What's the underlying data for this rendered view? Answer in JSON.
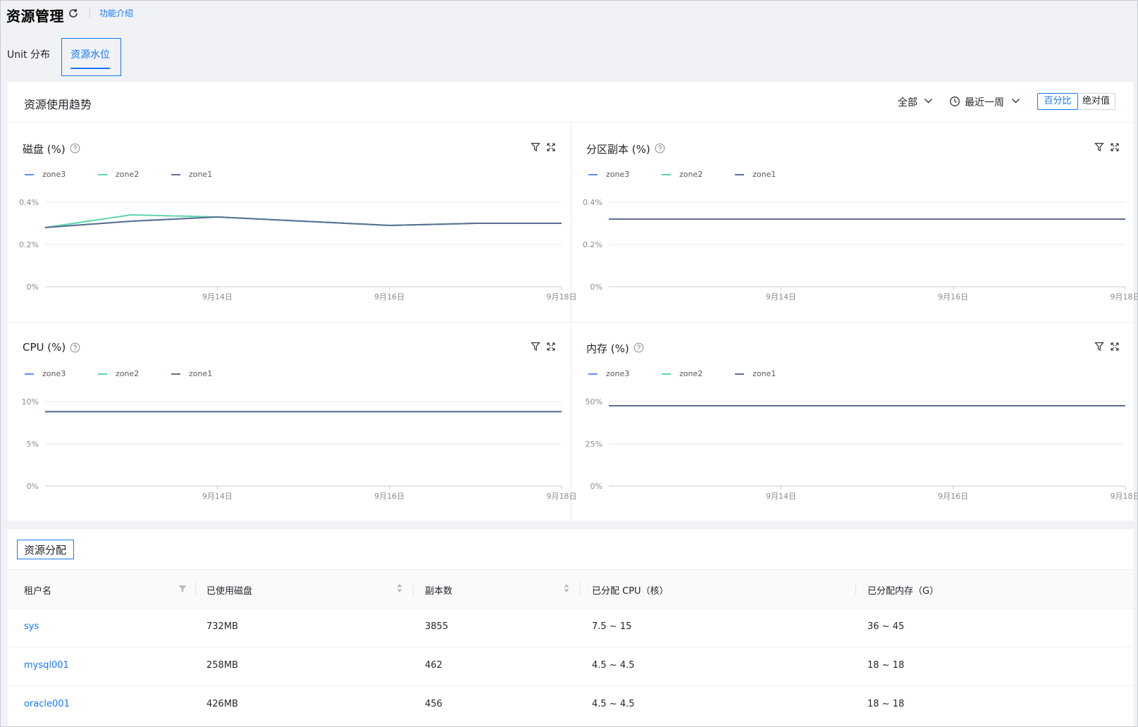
{
  "header": {
    "title": "资源管理",
    "intro_link": "功能介绍"
  },
  "tabs": [
    {
      "label": "Unit 分布",
      "active": false
    },
    {
      "label": "资源水位",
      "active": true
    }
  ],
  "trend": {
    "title": "资源使用趋势",
    "scope": "全部",
    "range": "最近一周",
    "mode_options": [
      "百分比",
      "绝对值"
    ],
    "mode_selected": "百分比"
  },
  "colors": {
    "accent": "#1677ff",
    "zone3": "#5b8ff9",
    "zone2": "#5ad8a6",
    "zone1": "#5d7092"
  },
  "charts": [
    {
      "title": "磁盘 (%)",
      "legend": [
        "zone3",
        "zone2",
        "zone1"
      ],
      "y_ticks": [
        "0.4%",
        "0.2%",
        "0%"
      ],
      "x_ticks": [
        "9月14日",
        "9月16日",
        "9月18日"
      ]
    },
    {
      "title": "分区副本 (%)",
      "legend": [
        "zone3",
        "zone2",
        "zone1"
      ],
      "y_ticks": [
        "0.4%",
        "0.2%",
        "0%"
      ],
      "x_ticks": [
        "9月14日",
        "9月16日",
        "9月18日"
      ]
    },
    {
      "title": "CPU (%)",
      "legend": [
        "zone3",
        "zone2",
        "zone1"
      ],
      "y_ticks": [
        "10%",
        "5%",
        "0%"
      ],
      "x_ticks": [
        "9月14日",
        "9月16日",
        "9月18日"
      ]
    },
    {
      "title": "内存 (%)",
      "legend": [
        "zone3",
        "zone2",
        "zone1"
      ],
      "y_ticks": [
        "50%",
        "25%",
        "0%"
      ],
      "x_ticks": [
        "9月14日",
        "9月16日",
        "9月18日"
      ]
    }
  ],
  "chart_data": [
    {
      "type": "line",
      "title": "磁盘 (%)",
      "x": [
        "9月12日",
        "9月13日",
        "9月14日",
        "9月15日",
        "9月16日",
        "9月17日",
        "9月18日"
      ],
      "ylim": [
        0,
        0.4
      ],
      "y_unit": "%",
      "series": [
        {
          "name": "zone3",
          "values": [
            0.28,
            0.31,
            0.33,
            0.31,
            0.29,
            0.3,
            0.3
          ]
        },
        {
          "name": "zone2",
          "values": [
            0.28,
            0.34,
            0.33,
            0.31,
            0.29,
            0.3,
            0.3
          ]
        },
        {
          "name": "zone1",
          "values": [
            0.28,
            0.31,
            0.33,
            0.31,
            0.29,
            0.3,
            0.3
          ]
        }
      ]
    },
    {
      "type": "line",
      "title": "分区副本 (%)",
      "x": [
        "9月12日",
        "9月13日",
        "9月14日",
        "9月15日",
        "9月16日",
        "9月17日",
        "9月18日"
      ],
      "ylim": [
        0,
        0.4
      ],
      "y_unit": "%",
      "series": [
        {
          "name": "zone3",
          "values": [
            0.32,
            0.32,
            0.32,
            0.32,
            0.32,
            0.32,
            0.32
          ]
        },
        {
          "name": "zone2",
          "values": [
            0.32,
            0.32,
            0.32,
            0.32,
            0.32,
            0.32,
            0.32
          ]
        },
        {
          "name": "zone1",
          "values": [
            0.32,
            0.32,
            0.32,
            0.32,
            0.32,
            0.32,
            0.32
          ]
        }
      ]
    },
    {
      "type": "line",
      "title": "CPU (%)",
      "x": [
        "9月12日",
        "9月13日",
        "9月14日",
        "9月15日",
        "9月16日",
        "9月17日",
        "9月18日"
      ],
      "ylim": [
        0,
        10
      ],
      "y_unit": "%",
      "series": [
        {
          "name": "zone3",
          "values": [
            8.8,
            8.8,
            8.8,
            8.8,
            8.8,
            8.8,
            8.8
          ]
        },
        {
          "name": "zone2",
          "values": [
            8.8,
            8.8,
            8.8,
            8.8,
            8.8,
            8.8,
            8.8
          ]
        },
        {
          "name": "zone1",
          "values": [
            8.8,
            8.8,
            8.8,
            8.8,
            8.8,
            8.8,
            8.8
          ]
        }
      ]
    },
    {
      "type": "line",
      "title": "内存 (%)",
      "x": [
        "9月12日",
        "9月13日",
        "9月14日",
        "9月15日",
        "9月16日",
        "9月17日",
        "9月18日"
      ],
      "ylim": [
        0,
        50
      ],
      "y_unit": "%",
      "series": [
        {
          "name": "zone3",
          "values": [
            47.5,
            47.5,
            47.5,
            47.5,
            47.5,
            47.5,
            47.5
          ]
        },
        {
          "name": "zone2",
          "values": [
            47.5,
            47.5,
            47.5,
            47.5,
            47.5,
            47.5,
            47.5
          ]
        },
        {
          "name": "zone1",
          "values": [
            47.5,
            47.5,
            47.5,
            47.5,
            47.5,
            47.5,
            47.5
          ]
        }
      ]
    }
  ],
  "allocation": {
    "title": "资源分配",
    "columns": [
      "租户名",
      "已使用磁盘",
      "副本数",
      "已分配 CPU（核）",
      "已分配内存（G）"
    ],
    "rows": [
      {
        "tenant": "sys",
        "disk": "732MB",
        "replicas": "3855",
        "cpu": "7.5 ~ 15",
        "memory": "36 ~ 45"
      },
      {
        "tenant": "mysql001",
        "disk": "258MB",
        "replicas": "462",
        "cpu": "4.5 ~ 4.5",
        "memory": "18 ~ 18"
      },
      {
        "tenant": "oracle001",
        "disk": "426MB",
        "replicas": "456",
        "cpu": "4.5 ~ 4.5",
        "memory": "18 ~ 18"
      }
    ]
  }
}
